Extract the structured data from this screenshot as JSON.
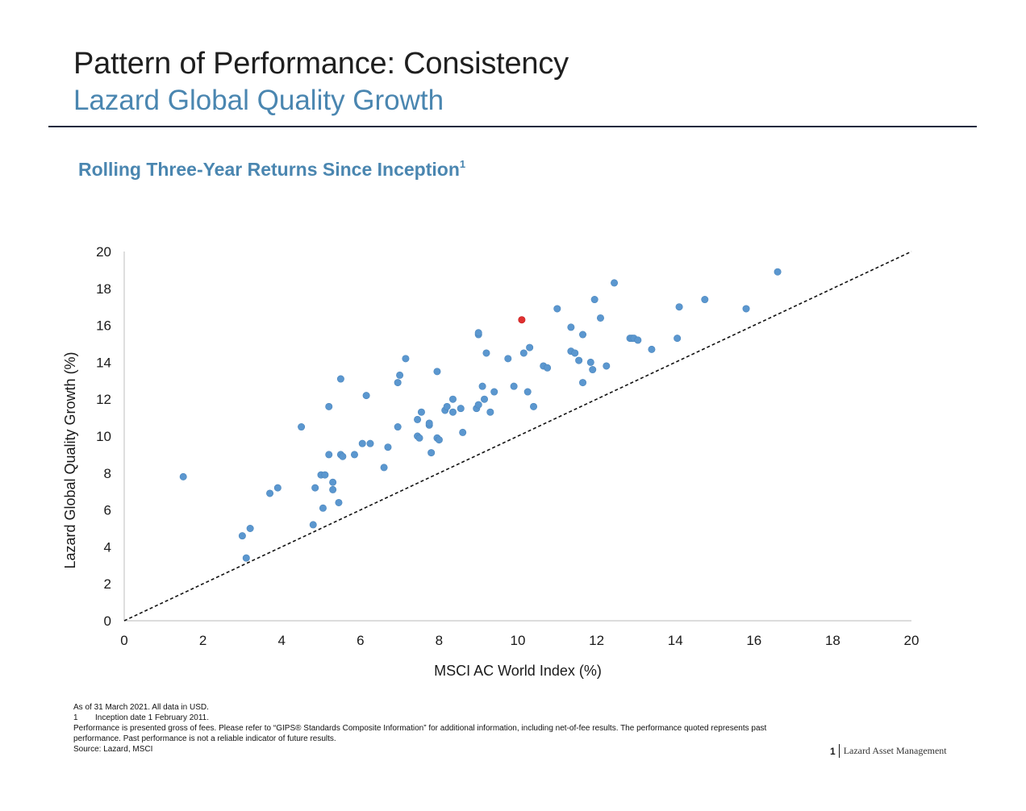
{
  "header": {
    "title": "Pattern of Performance: Consistency",
    "subtitle": "Lazard Global Quality Growth"
  },
  "chart_heading": {
    "text": "Rolling Three-Year Returns Since Inception",
    "footnote_mark": "1"
  },
  "colors": {
    "point": "#5b97cf",
    "highlight_point": "#e03030",
    "heading_blue": "#4a86b0",
    "rule": "#1b2a3e"
  },
  "chart_data": {
    "type": "scatter",
    "xlabel": "MSCI AC World Index (%)",
    "ylabel": "Lazard Global Quality Growth (%)",
    "xlim": [
      0,
      20
    ],
    "ylim": [
      0,
      20
    ],
    "xticks": [
      "0",
      "2",
      "4",
      "6",
      "8",
      "10",
      "12",
      "14",
      "16",
      "18",
      "20"
    ],
    "yticks": [
      "0",
      "2",
      "4",
      "6",
      "8",
      "10",
      "12",
      "14",
      "16",
      "18",
      "20"
    ],
    "grid": false,
    "reference_line": {
      "style": "dashed",
      "from": [
        0,
        0
      ],
      "to": [
        20,
        20
      ]
    },
    "highlight": {
      "x": 10.1,
      "y": 16.3
    },
    "points": [
      [
        1.5,
        7.8
      ],
      [
        3.0,
        4.6
      ],
      [
        3.1,
        3.4
      ],
      [
        3.2,
        5.0
      ],
      [
        3.7,
        6.9
      ],
      [
        3.9,
        7.2
      ],
      [
        4.5,
        10.5
      ],
      [
        4.8,
        5.2
      ],
      [
        4.85,
        7.2
      ],
      [
        5.0,
        7.9
      ],
      [
        5.05,
        6.1
      ],
      [
        5.1,
        7.9
      ],
      [
        5.2,
        9.0
      ],
      [
        5.2,
        11.6
      ],
      [
        5.3,
        7.1
      ],
      [
        5.3,
        7.5
      ],
      [
        5.45,
        6.4
      ],
      [
        5.5,
        13.1
      ],
      [
        5.5,
        9.0
      ],
      [
        5.55,
        8.9
      ],
      [
        5.85,
        9.0
      ],
      [
        6.05,
        9.6
      ],
      [
        6.15,
        12.2
      ],
      [
        6.25,
        9.6
      ],
      [
        6.6,
        8.3
      ],
      [
        6.7,
        9.4
      ],
      [
        6.95,
        12.9
      ],
      [
        6.95,
        10.5
      ],
      [
        7.0,
        13.3
      ],
      [
        7.15,
        14.2
      ],
      [
        7.45,
        10.9
      ],
      [
        7.45,
        10.0
      ],
      [
        7.5,
        9.9
      ],
      [
        7.55,
        11.3
      ],
      [
        7.75,
        10.6
      ],
      [
        7.75,
        10.7
      ],
      [
        7.8,
        9.1
      ],
      [
        7.95,
        9.9
      ],
      [
        7.95,
        13.5
      ],
      [
        8.0,
        9.8
      ],
      [
        8.15,
        11.4
      ],
      [
        8.2,
        11.6
      ],
      [
        8.35,
        11.3
      ],
      [
        8.35,
        12.0
      ],
      [
        8.55,
        11.5
      ],
      [
        8.6,
        10.2
      ],
      [
        8.95,
        11.5
      ],
      [
        9.0,
        11.7
      ],
      [
        9.0,
        15.5
      ],
      [
        9.0,
        15.6
      ],
      [
        9.1,
        12.7
      ],
      [
        9.15,
        12.0
      ],
      [
        9.2,
        14.5
      ],
      [
        9.3,
        11.3
      ],
      [
        9.4,
        12.4
      ],
      [
        9.75,
        14.2
      ],
      [
        9.9,
        12.7
      ],
      [
        10.1,
        16.3
      ],
      [
        10.15,
        14.5
      ],
      [
        10.25,
        12.4
      ],
      [
        10.3,
        14.8
      ],
      [
        10.4,
        11.6
      ],
      [
        10.65,
        13.8
      ],
      [
        10.75,
        13.7
      ],
      [
        11.0,
        16.9
      ],
      [
        11.35,
        15.9
      ],
      [
        11.35,
        14.6
      ],
      [
        11.45,
        14.5
      ],
      [
        11.55,
        14.1
      ],
      [
        11.65,
        15.5
      ],
      [
        11.65,
        12.9
      ],
      [
        11.85,
        14.0
      ],
      [
        11.9,
        13.6
      ],
      [
        11.95,
        17.4
      ],
      [
        12.1,
        16.4
      ],
      [
        12.25,
        13.8
      ],
      [
        12.45,
        18.3
      ],
      [
        12.85,
        15.3
      ],
      [
        12.9,
        15.3
      ],
      [
        12.95,
        15.3
      ],
      [
        13.05,
        15.2
      ],
      [
        13.4,
        14.7
      ],
      [
        14.05,
        15.3
      ],
      [
        14.1,
        17.0
      ],
      [
        14.75,
        17.4
      ],
      [
        15.8,
        16.9
      ],
      [
        16.6,
        18.9
      ]
    ]
  },
  "notes": {
    "date_line": "As of 31 March 2021. All data in USD.",
    "footnote_1_num": "1",
    "footnote_1_text": "Inception date 1 February 2011.",
    "performance_disclaimer": "Performance is presented gross of fees. Please refer to “GIPS® Standards Composite Information” for additional information, including net-of-fee results. The performance quoted represents past performance. Past performance is not a reliable indicator of future results.",
    "source": "Source: Lazard, MSCI"
  },
  "footer": {
    "page_number": "1",
    "company": "Lazard Asset Management"
  }
}
